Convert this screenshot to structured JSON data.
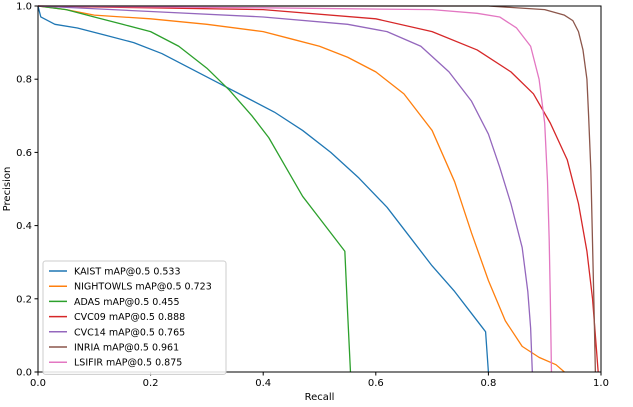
{
  "chart_data": {
    "type": "line",
    "xlabel": "Recall",
    "ylabel": "Precision",
    "xlim": [
      0.0,
      1.0
    ],
    "ylim": [
      0.0,
      1.0
    ],
    "x_ticks": [
      "0.0",
      "0.2",
      "0.4",
      "0.6",
      "0.8",
      "1.0"
    ],
    "y_ticks": [
      "0.0",
      "0.2",
      "0.4",
      "0.6",
      "0.8",
      "1.0"
    ],
    "grid": false,
    "legend_position": "lower-left",
    "series": [
      {
        "name": "KAIST mAP@0.5 0.533",
        "color": "#1f77b4",
        "points": [
          [
            0.0,
            1.0
          ],
          [
            0.005,
            0.97
          ],
          [
            0.03,
            0.95
          ],
          [
            0.07,
            0.94
          ],
          [
            0.12,
            0.92
          ],
          [
            0.17,
            0.9
          ],
          [
            0.22,
            0.87
          ],
          [
            0.27,
            0.83
          ],
          [
            0.32,
            0.79
          ],
          [
            0.37,
            0.75
          ],
          [
            0.42,
            0.71
          ],
          [
            0.47,
            0.66
          ],
          [
            0.52,
            0.6
          ],
          [
            0.57,
            0.53
          ],
          [
            0.62,
            0.45
          ],
          [
            0.66,
            0.37
          ],
          [
            0.7,
            0.29
          ],
          [
            0.74,
            0.22
          ],
          [
            0.77,
            0.16
          ],
          [
            0.79,
            0.12
          ],
          [
            0.795,
            0.11
          ],
          [
            0.8,
            0.0
          ]
        ]
      },
      {
        "name": "NIGHTOWLS mAP@0.5 0.723",
        "color": "#ff7f0e",
        "points": [
          [
            0.0,
            1.0
          ],
          [
            0.05,
            0.99
          ],
          [
            0.1,
            0.975
          ],
          [
            0.2,
            0.965
          ],
          [
            0.3,
            0.95
          ],
          [
            0.4,
            0.93
          ],
          [
            0.45,
            0.91
          ],
          [
            0.5,
            0.89
          ],
          [
            0.55,
            0.86
          ],
          [
            0.6,
            0.82
          ],
          [
            0.65,
            0.76
          ],
          [
            0.7,
            0.66
          ],
          [
            0.74,
            0.52
          ],
          [
            0.77,
            0.38
          ],
          [
            0.8,
            0.25
          ],
          [
            0.83,
            0.14
          ],
          [
            0.86,
            0.07
          ],
          [
            0.89,
            0.04
          ],
          [
            0.92,
            0.02
          ],
          [
            0.935,
            0.0
          ]
        ]
      },
      {
        "name": "ADAS mAP@0.5 0.455",
        "color": "#2ca02c",
        "points": [
          [
            0.0,
            1.0
          ],
          [
            0.05,
            0.99
          ],
          [
            0.1,
            0.97
          ],
          [
            0.15,
            0.95
          ],
          [
            0.2,
            0.93
          ],
          [
            0.25,
            0.89
          ],
          [
            0.3,
            0.83
          ],
          [
            0.34,
            0.77
          ],
          [
            0.38,
            0.7
          ],
          [
            0.41,
            0.64
          ],
          [
            0.44,
            0.56
          ],
          [
            0.47,
            0.48
          ],
          [
            0.5,
            0.42
          ],
          [
            0.53,
            0.36
          ],
          [
            0.545,
            0.33
          ],
          [
            0.55,
            0.16
          ],
          [
            0.555,
            0.0
          ]
        ]
      },
      {
        "name": "CVC09 mAP@0.5 0.888",
        "color": "#d62728",
        "points": [
          [
            0.0,
            1.0
          ],
          [
            0.2,
            0.995
          ],
          [
            0.4,
            0.99
          ],
          [
            0.6,
            0.965
          ],
          [
            0.7,
            0.93
          ],
          [
            0.78,
            0.88
          ],
          [
            0.84,
            0.82
          ],
          [
            0.88,
            0.76
          ],
          [
            0.91,
            0.68
          ],
          [
            0.94,
            0.58
          ],
          [
            0.96,
            0.46
          ],
          [
            0.975,
            0.33
          ],
          [
            0.985,
            0.2
          ],
          [
            0.99,
            0.1
          ],
          [
            0.995,
            0.0
          ]
        ]
      },
      {
        "name": "CVC14 mAP@0.5 0.765",
        "color": "#9467bd",
        "points": [
          [
            0.0,
            1.0
          ],
          [
            0.2,
            0.985
          ],
          [
            0.4,
            0.97
          ],
          [
            0.55,
            0.95
          ],
          [
            0.62,
            0.93
          ],
          [
            0.68,
            0.89
          ],
          [
            0.73,
            0.82
          ],
          [
            0.77,
            0.74
          ],
          [
            0.8,
            0.65
          ],
          [
            0.82,
            0.56
          ],
          [
            0.84,
            0.46
          ],
          [
            0.86,
            0.34
          ],
          [
            0.87,
            0.22
          ],
          [
            0.875,
            0.12
          ],
          [
            0.878,
            0.0
          ]
        ]
      },
      {
        "name": "INRIA mAP@0.5 0.961",
        "color": "#8c564b",
        "points": [
          [
            0.0,
            1.0
          ],
          [
            0.6,
            1.0
          ],
          [
            0.8,
            1.0
          ],
          [
            0.9,
            0.99
          ],
          [
            0.935,
            0.975
          ],
          [
            0.95,
            0.96
          ],
          [
            0.96,
            0.93
          ],
          [
            0.968,
            0.88
          ],
          [
            0.975,
            0.8
          ],
          [
            0.978,
            0.7
          ],
          [
            0.982,
            0.55
          ],
          [
            0.985,
            0.35
          ],
          [
            0.988,
            0.15
          ],
          [
            0.99,
            0.0
          ]
        ]
      },
      {
        "name": "LSIFIR mAP@0.5 0.875",
        "color": "#e377c2",
        "points": [
          [
            0.0,
            1.0
          ],
          [
            0.4,
            0.995
          ],
          [
            0.7,
            0.99
          ],
          [
            0.78,
            0.98
          ],
          [
            0.82,
            0.97
          ],
          [
            0.85,
            0.94
          ],
          [
            0.875,
            0.89
          ],
          [
            0.89,
            0.8
          ],
          [
            0.9,
            0.68
          ],
          [
            0.905,
            0.52
          ],
          [
            0.908,
            0.36
          ],
          [
            0.91,
            0.2
          ],
          [
            0.912,
            0.0
          ]
        ]
      }
    ]
  }
}
